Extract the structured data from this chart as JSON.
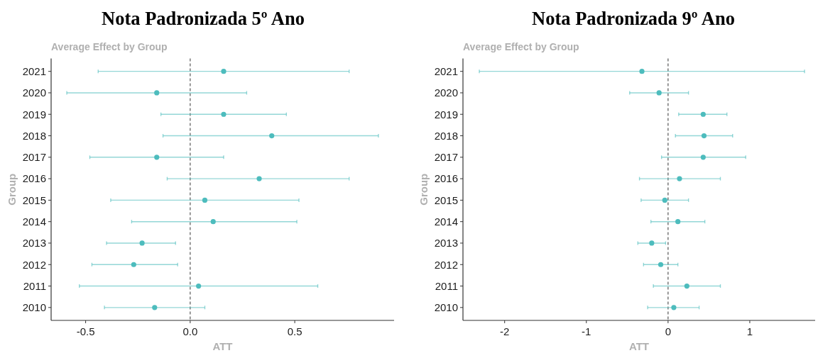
{
  "chart_data": [
    {
      "type": "scatter",
      "orientation": "horizontal",
      "title": "Nota Padronizada 5º Ano",
      "subtitle": "Average Effect by Group",
      "xlabel": "ATT",
      "ylabel": "Group",
      "marker": "circle",
      "color": "#4dbcbd",
      "categories": [
        "2021",
        "2020",
        "2019",
        "2018",
        "2017",
        "2016",
        "2015",
        "2014",
        "2013",
        "2012",
        "2011",
        "2010"
      ],
      "values": [
        0.16,
        -0.16,
        0.16,
        0.39,
        -0.16,
        0.33,
        0.07,
        0.11,
        -0.23,
        -0.27,
        0.04,
        -0.17
      ],
      "errors": [
        [
          -0.44,
          0.76
        ],
        [
          -0.59,
          0.27
        ],
        [
          -0.14,
          0.46
        ],
        [
          -0.13,
          0.9
        ],
        [
          -0.48,
          0.16
        ],
        [
          -0.11,
          0.76
        ],
        [
          -0.38,
          0.52
        ],
        [
          -0.28,
          0.51
        ],
        [
          -0.4,
          -0.07
        ],
        [
          -0.47,
          -0.06
        ],
        [
          -0.53,
          0.61
        ],
        [
          -0.41,
          0.07
        ]
      ],
      "xlim": [
        -0.665,
        0.975
      ],
      "xticks": [
        -0.5,
        {
          "value": 0,
          "label": "0.0"
        },
        0.5
      ],
      "ref_lines": [
        {
          "axis": "x",
          "value": 0,
          "color": "#555555",
          "line_style": "dashed"
        }
      ]
    },
    {
      "type": "scatter",
      "orientation": "horizontal",
      "title": "Nota Padronizada 9º Ano",
      "subtitle": "Average Effect by Group",
      "xlabel": "ATT",
      "ylabel": "Group",
      "marker": "circle",
      "color": "#4dbcbd",
      "categories": [
        "2021",
        "2020",
        "2019",
        "2018",
        "2017",
        "2016",
        "2015",
        "2014",
        "2013",
        "2012",
        "2011",
        "2010"
      ],
      "values": [
        -0.32,
        -0.11,
        0.43,
        0.44,
        0.43,
        0.14,
        -0.04,
        0.12,
        -0.2,
        -0.09,
        0.23,
        0.07
      ],
      "errors": [
        [
          -2.31,
          1.67
        ],
        [
          -0.47,
          0.25
        ],
        [
          0.13,
          0.72
        ],
        [
          0.09,
          0.79
        ],
        [
          -0.08,
          0.95
        ],
        [
          -0.35,
          0.64
        ],
        [
          -0.33,
          0.25
        ],
        [
          -0.21,
          0.45
        ],
        [
          -0.37,
          -0.03
        ],
        [
          -0.3,
          0.12
        ],
        [
          -0.18,
          0.64
        ],
        [
          -0.25,
          0.38
        ]
      ],
      "xlim": [
        -2.51,
        1.8
      ],
      "xticks": [
        -2,
        -1,
        0,
        1
      ],
      "ref_lines": [
        {
          "axis": "x",
          "value": 0,
          "color": "#555555",
          "line_style": "dashed"
        }
      ]
    }
  ]
}
